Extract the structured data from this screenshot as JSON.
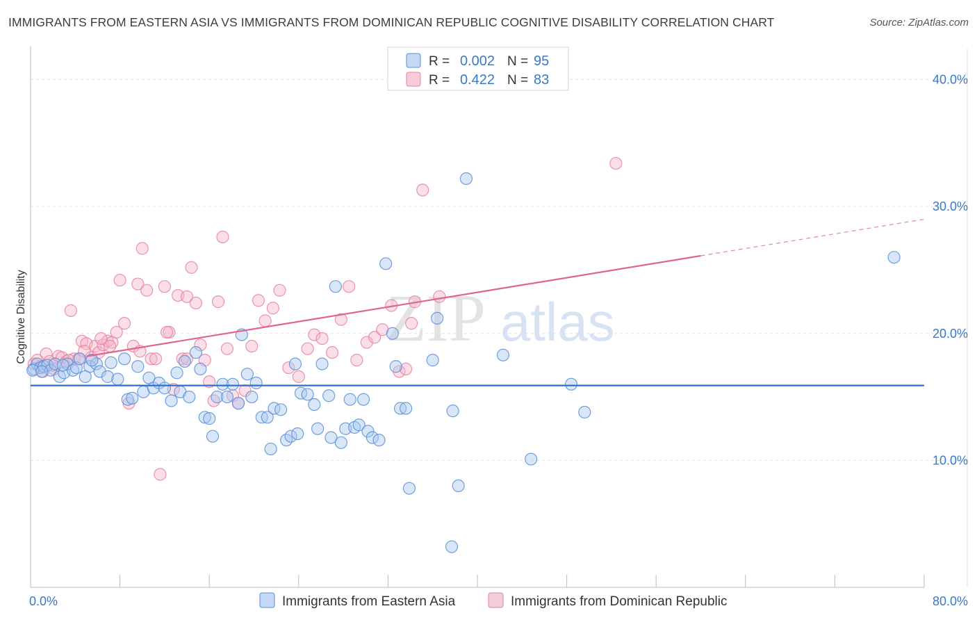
{
  "title": "IMMIGRANTS FROM EASTERN ASIA VS IMMIGRANTS FROM DOMINICAN REPUBLIC COGNITIVE DISABILITY CORRELATION CHART",
  "source": "Source: ZipAtlas.com",
  "watermark": {
    "zip": "ZIP",
    "atlas": "atlas"
  },
  "colors": {
    "blue_fill": "#a8c8f0",
    "blue_stroke": "#5b8fd6",
    "blue_line": "#2f6fd0",
    "pink_fill": "#f4b6cb",
    "pink_stroke": "#e6829f",
    "pink_line": "#e0648e",
    "tick_label": "#3a78c9",
    "grid": "#e2e2e2"
  },
  "legend_top": [
    {
      "r_label": "R = ",
      "r_value": "0.002",
      "n_label": "N = ",
      "n_value": "95",
      "series": "blue"
    },
    {
      "r_label": "R = ",
      "r_value": "0.422",
      "n_label": "N = ",
      "n_value": "83",
      "series": "pink"
    }
  ],
  "chart_data": {
    "type": "scatter",
    "title": "IMMIGRANTS FROM EASTERN ASIA VS IMMIGRANTS FROM DOMINICAN REPUBLIC COGNITIVE DISABILITY CORRELATION CHART",
    "xlabel": "",
    "ylabel": "Cognitive Disability",
    "xlim": [
      0,
      80
    ],
    "ylim": [
      0,
      42
    ],
    "x_tick_labels": [
      {
        "value": 0,
        "label": "0.0%"
      },
      {
        "value": 80,
        "label": "80.0%"
      }
    ],
    "y_tick_labels": [
      {
        "value": 10,
        "label": "10.0%"
      },
      {
        "value": 20,
        "label": "20.0%"
      },
      {
        "value": 30,
        "label": "30.0%"
      },
      {
        "value": 40,
        "label": "40.0%"
      }
    ],
    "grid": true,
    "legend_position": "bottom",
    "series": [
      {
        "name": "Immigrants from Eastern Asia",
        "color": "blue",
        "trend": {
          "x0": 0,
          "y0": 15.9,
          "x1": 80,
          "y1": 15.9,
          "dashed_from": null
        },
        "points": [
          [
            0.3,
            17.2
          ],
          [
            0.6,
            17.6
          ],
          [
            0.9,
            17.3
          ],
          [
            1.2,
            17.4
          ],
          [
            1.5,
            17.5
          ],
          [
            1.8,
            17.1
          ],
          [
            2.2,
            17.6
          ],
          [
            2.6,
            16.6
          ],
          [
            3.0,
            16.9
          ],
          [
            3.3,
            17.6
          ],
          [
            3.8,
            17.1
          ],
          [
            4.1,
            17.3
          ],
          [
            4.4,
            18.0
          ],
          [
            4.9,
            16.6
          ],
          [
            5.3,
            17.4
          ],
          [
            5.9,
            17.6
          ],
          [
            6.2,
            17.0
          ],
          [
            6.9,
            16.6
          ],
          [
            7.2,
            17.7
          ],
          [
            7.8,
            16.4
          ],
          [
            8.4,
            18.0
          ],
          [
            8.7,
            14.8
          ],
          [
            9.1,
            14.9
          ],
          [
            9.6,
            17.4
          ],
          [
            10.1,
            15.4
          ],
          [
            10.6,
            16.5
          ],
          [
            11.0,
            15.7
          ],
          [
            11.5,
            16.1
          ],
          [
            12.0,
            15.7
          ],
          [
            12.6,
            14.7
          ],
          [
            13.1,
            16.9
          ],
          [
            13.4,
            15.4
          ],
          [
            13.8,
            17.8
          ],
          [
            14.2,
            15.0
          ],
          [
            14.8,
            18.5
          ],
          [
            15.2,
            17.2
          ],
          [
            15.6,
            13.4
          ],
          [
            16.0,
            13.3
          ],
          [
            16.3,
            11.9
          ],
          [
            16.7,
            15.0
          ],
          [
            17.2,
            16.0
          ],
          [
            17.6,
            15.0
          ],
          [
            18.1,
            16.0
          ],
          [
            18.6,
            14.5
          ],
          [
            18.9,
            19.9
          ],
          [
            19.4,
            16.8
          ],
          [
            19.8,
            15.0
          ],
          [
            20.2,
            16.1
          ],
          [
            20.7,
            13.4
          ],
          [
            21.2,
            13.4
          ],
          [
            21.5,
            10.9
          ],
          [
            21.8,
            14.1
          ],
          [
            22.4,
            14.0
          ],
          [
            22.9,
            11.6
          ],
          [
            23.3,
            11.9
          ],
          [
            23.7,
            17.6
          ],
          [
            23.9,
            12.1
          ],
          [
            24.2,
            15.3
          ],
          [
            24.8,
            15.2
          ],
          [
            25.4,
            14.4
          ],
          [
            25.7,
            12.5
          ],
          [
            26.1,
            17.6
          ],
          [
            26.7,
            15.1
          ],
          [
            26.9,
            11.8
          ],
          [
            27.3,
            23.7
          ],
          [
            27.8,
            11.4
          ],
          [
            28.2,
            12.5
          ],
          [
            28.6,
            14.8
          ],
          [
            29.0,
            12.6
          ],
          [
            29.4,
            12.8
          ],
          [
            29.8,
            14.8
          ],
          [
            30.2,
            12.3
          ],
          [
            30.6,
            11.8
          ],
          [
            31.2,
            11.6
          ],
          [
            31.8,
            25.5
          ],
          [
            32.4,
            20.0
          ],
          [
            32.7,
            17.4
          ],
          [
            33.1,
            14.1
          ],
          [
            33.6,
            14.1
          ],
          [
            33.9,
            7.8
          ],
          [
            36.0,
            17.9
          ],
          [
            36.4,
            21.2
          ],
          [
            37.8,
            13.9
          ],
          [
            38.3,
            8.0
          ],
          [
            39.0,
            32.2
          ],
          [
            37.7,
            3.2
          ],
          [
            42.3,
            18.3
          ],
          [
            44.8,
            10.1
          ],
          [
            48.4,
            16.0
          ],
          [
            49.6,
            13.8
          ],
          [
            77.3,
            26.0
          ],
          [
            0.2,
            17.1
          ],
          [
            1.0,
            17.0
          ],
          [
            2.9,
            17.5
          ],
          [
            5.5,
            17.9
          ]
        ]
      },
      {
        "name": "Immigrants from Dominican Republic",
        "color": "pink",
        "trend": {
          "x0": 5,
          "y0": 18.2,
          "x1": 80,
          "y1": 29.0,
          "dashed_from": 60
        },
        "points": [
          [
            0.3,
            17.6
          ],
          [
            0.6,
            17.9
          ],
          [
            0.9,
            17.4
          ],
          [
            1.1,
            17.0
          ],
          [
            1.4,
            18.4
          ],
          [
            1.7,
            17.8
          ],
          [
            2.1,
            17.2
          ],
          [
            2.5,
            18.2
          ],
          [
            2.8,
            18.1
          ],
          [
            3.2,
            17.8
          ],
          [
            3.6,
            21.8
          ],
          [
            3.9,
            18.0
          ],
          [
            4.3,
            18.0
          ],
          [
            4.6,
            19.4
          ],
          [
            5.0,
            19.2
          ],
          [
            5.4,
            18.1
          ],
          [
            5.8,
            19.0
          ],
          [
            6.1,
            18.5
          ],
          [
            6.5,
            19.1
          ],
          [
            6.9,
            19.4
          ],
          [
            7.3,
            19.3
          ],
          [
            7.7,
            20.1
          ],
          [
            8.0,
            24.2
          ],
          [
            8.4,
            20.8
          ],
          [
            8.8,
            14.5
          ],
          [
            9.2,
            19.0
          ],
          [
            9.6,
            23.9
          ],
          [
            10.0,
            26.7
          ],
          [
            10.4,
            23.4
          ],
          [
            10.8,
            18.0
          ],
          [
            11.2,
            18.0
          ],
          [
            11.6,
            8.9
          ],
          [
            12.0,
            23.7
          ],
          [
            12.4,
            20.1
          ],
          [
            12.8,
            15.6
          ],
          [
            13.2,
            23.0
          ],
          [
            13.6,
            18.0
          ],
          [
            14.0,
            22.9
          ],
          [
            14.4,
            25.2
          ],
          [
            14.8,
            22.4
          ],
          [
            15.2,
            19.1
          ],
          [
            15.6,
            17.9
          ],
          [
            16.0,
            16.2
          ],
          [
            16.4,
            14.7
          ],
          [
            16.8,
            22.5
          ],
          [
            17.2,
            27.6
          ],
          [
            17.6,
            18.8
          ],
          [
            18.1,
            15.1
          ],
          [
            18.6,
            14.5
          ],
          [
            19.2,
            15.5
          ],
          [
            19.8,
            19.0
          ],
          [
            20.4,
            22.6
          ],
          [
            21.0,
            21.0
          ],
          [
            21.7,
            22.0
          ],
          [
            22.3,
            23.4
          ],
          [
            23.1,
            17.3
          ],
          [
            24.0,
            16.6
          ],
          [
            24.8,
            18.8
          ],
          [
            25.4,
            19.9
          ],
          [
            26.1,
            19.6
          ],
          [
            27.0,
            18.5
          ],
          [
            27.8,
            21.1
          ],
          [
            28.5,
            23.7
          ],
          [
            29.2,
            17.9
          ],
          [
            30.1,
            19.3
          ],
          [
            30.8,
            19.7
          ],
          [
            31.5,
            20.3
          ],
          [
            32.3,
            22.2
          ],
          [
            33.0,
            17.0
          ],
          [
            33.6,
            17.2
          ],
          [
            34.4,
            22.5
          ],
          [
            34.1,
            20.8
          ],
          [
            35.1,
            31.3
          ],
          [
            36.6,
            22.9
          ],
          [
            52.4,
            33.4
          ],
          [
            2.0,
            17.5
          ],
          [
            3.4,
            17.9
          ],
          [
            4.8,
            18.6
          ],
          [
            6.3,
            19.6
          ],
          [
            7.1,
            19.0
          ],
          [
            9.8,
            18.6
          ],
          [
            12.2,
            20.1
          ],
          [
            14.0,
            18.0
          ]
        ]
      }
    ]
  },
  "legend_bottom": [
    {
      "label": "Immigrants from Eastern Asia",
      "series": "blue"
    },
    {
      "label": "Immigrants from Dominican Republic",
      "series": "pink"
    }
  ]
}
